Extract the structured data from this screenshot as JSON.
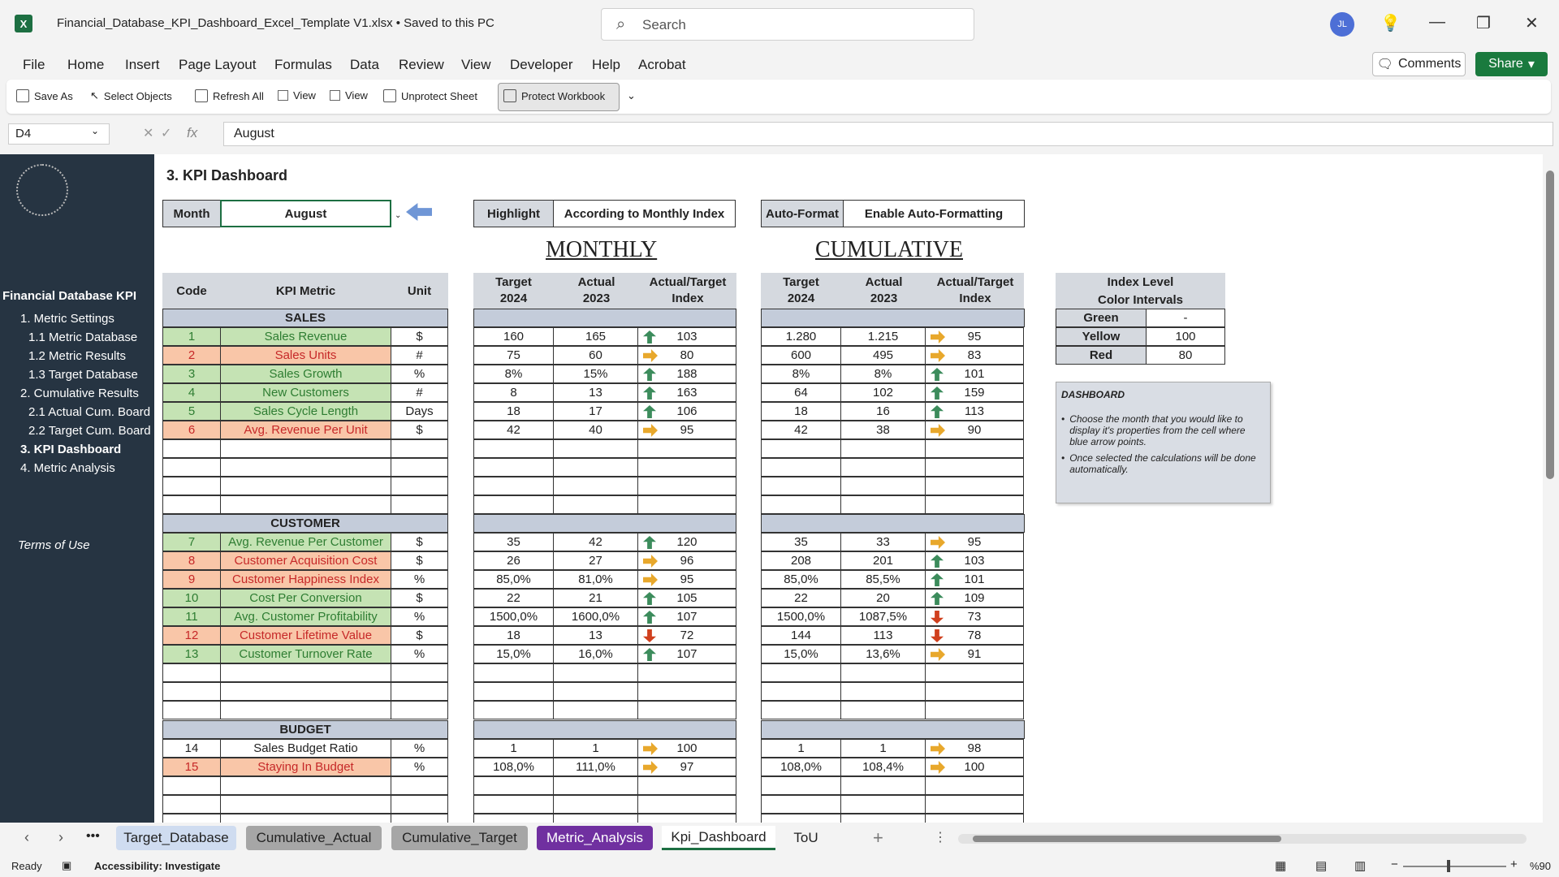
{
  "window": {
    "file_title": "Financial_Database_KPI_Dashboard_Excel_Template V1.xlsx • Saved to this PC",
    "search_placeholder": "Search",
    "avatar": "JL"
  },
  "menu": [
    "File",
    "Home",
    "Insert",
    "Page Layout",
    "Formulas",
    "Data",
    "Review",
    "View",
    "Developer",
    "Help",
    "Acrobat"
  ],
  "menu_right": {
    "comments": "Comments",
    "share": "Share"
  },
  "ribbon": {
    "save_as": "Save As",
    "select_objects": "Select Objects",
    "refresh_all": "Refresh All",
    "view1": "View",
    "view2": "View",
    "unprotect": "Unprotect Sheet",
    "protect": "Protect Workbook"
  },
  "formula_bar": {
    "name_box": "D4",
    "fx": "fx",
    "value": "August"
  },
  "sidebar": {
    "header": "Financial Database KPI",
    "items": [
      "1. Metric Settings",
      "1.1 Metric Database",
      "1.2 Metric Results",
      "1.3 Target Database",
      "2. Cumulative Results",
      "2.1 Actual Cum. Board",
      "2.2 Target Cum. Board",
      "3. KPI Dashboard",
      "4. Metric Analysis"
    ],
    "terms": "Terms of Use"
  },
  "dashboard": {
    "title": "3. KPI Dashboard",
    "month_label": "Month",
    "month_value": "August",
    "highlight_label": "Highlight",
    "highlight_value": "According to Monthly Index",
    "autoformat_label": "Auto-Format",
    "autoformat_value": "Enable Auto-Formatting",
    "monthly": "MONTHLY",
    "cumulative": "CUMULATIVE",
    "col_code": "Code",
    "col_metric": "KPI Metric",
    "col_unit": "Unit",
    "col_target": "Target",
    "col_target_year": "2024",
    "col_actual": "Actual",
    "col_actual_year": "2023",
    "col_index": "Actual/Target",
    "col_index2": "Index",
    "legend_title1": "Index Level",
    "legend_title2": "Color Intervals",
    "legend": [
      {
        "name": "Green",
        "value": "-"
      },
      {
        "name": "Yellow",
        "value": "100"
      },
      {
        "name": "Red",
        "value": "80"
      }
    ],
    "note_title": "DASHBOARD",
    "note_items": [
      "Choose the month that you would like to display it's properties from the cell where blue arrow points.",
      "Once selected the calculations will be done automatically."
    ]
  },
  "sections": {
    "sales": "SALES",
    "customer": "CUSTOMER",
    "budget": "BUDGET"
  },
  "rows": [
    {
      "code": "1",
      "metric": "Sales Revenue",
      "unit": "$",
      "mt": "160",
      "ma": "165",
      "mi": "103",
      "mdir": "up",
      "ct": "1.280",
      "ca": "1.215",
      "ci": "95",
      "cdir": "right",
      "color": "g"
    },
    {
      "code": "2",
      "metric": "Sales Units",
      "unit": "#",
      "mt": "75",
      "ma": "60",
      "mi": "80",
      "mdir": "right",
      "ct": "600",
      "ca": "495",
      "ci": "83",
      "cdir": "right",
      "color": "r"
    },
    {
      "code": "3",
      "metric": "Sales Growth",
      "unit": "%",
      "mt": "8%",
      "ma": "15%",
      "mi": "188",
      "mdir": "up",
      "ct": "8%",
      "ca": "8%",
      "ci": "101",
      "cdir": "up",
      "color": "g"
    },
    {
      "code": "4",
      "metric": "New Customers",
      "unit": "#",
      "mt": "8",
      "ma": "13",
      "mi": "163",
      "mdir": "up",
      "ct": "64",
      "ca": "102",
      "ci": "159",
      "cdir": "up",
      "color": "g"
    },
    {
      "code": "5",
      "metric": "Sales Cycle Length",
      "unit": "Days",
      "mt": "18",
      "ma": "17",
      "mi": "106",
      "mdir": "up",
      "ct": "18",
      "ca": "16",
      "ci": "113",
      "cdir": "up",
      "color": "g"
    },
    {
      "code": "6",
      "metric": "Avg. Revenue Per Unit",
      "unit": "$",
      "mt": "42",
      "ma": "40",
      "mi": "95",
      "mdir": "right",
      "ct": "42",
      "ca": "38",
      "ci": "90",
      "cdir": "right",
      "color": "r"
    },
    {
      "code": "7",
      "metric": "Avg. Revenue Per Customer",
      "unit": "$",
      "mt": "35",
      "ma": "42",
      "mi": "120",
      "mdir": "up",
      "ct": "35",
      "ca": "33",
      "ci": "95",
      "cdir": "right",
      "color": "g"
    },
    {
      "code": "8",
      "metric": "Customer Acquisition Cost",
      "unit": "$",
      "mt": "26",
      "ma": "27",
      "mi": "96",
      "mdir": "right",
      "ct": "208",
      "ca": "201",
      "ci": "103",
      "cdir": "up",
      "color": "r"
    },
    {
      "code": "9",
      "metric": "Customer Happiness Index",
      "unit": "%",
      "mt": "85,0%",
      "ma": "81,0%",
      "mi": "95",
      "mdir": "right",
      "ct": "85,0%",
      "ca": "85,5%",
      "ci": "101",
      "cdir": "up",
      "color": "r"
    },
    {
      "code": "10",
      "metric": "Cost Per Conversion",
      "unit": "$",
      "mt": "22",
      "ma": "21",
      "mi": "105",
      "mdir": "up",
      "ct": "22",
      "ca": "20",
      "ci": "109",
      "cdir": "up",
      "color": "g"
    },
    {
      "code": "11",
      "metric": "Avg. Customer Profitability",
      "unit": "%",
      "mt": "1500,0%",
      "ma": "1600,0%",
      "mi": "107",
      "mdir": "up",
      "ct": "1500,0%",
      "ca": "1087,5%",
      "ci": "73",
      "cdir": "down",
      "color": "g"
    },
    {
      "code": "12",
      "metric": "Customer Lifetime Value",
      "unit": "$",
      "mt": "18",
      "ma": "13",
      "mi": "72",
      "mdir": "down",
      "ct": "144",
      "ca": "113",
      "ci": "78",
      "cdir": "down",
      "color": "r"
    },
    {
      "code": "13",
      "metric": "Customer Turnover Rate",
      "unit": "%",
      "mt": "15,0%",
      "ma": "16,0%",
      "mi": "107",
      "mdir": "up",
      "ct": "15,0%",
      "ca": "13,6%",
      "ci": "91",
      "cdir": "right",
      "color": "g"
    },
    {
      "code": "14",
      "metric": "Sales Budget Ratio",
      "unit": "%",
      "mt": "1",
      "ma": "1",
      "mi": "100",
      "mdir": "right",
      "ct": "1",
      "ca": "1",
      "ci": "98",
      "cdir": "right",
      "color": "n"
    },
    {
      "code": "15",
      "metric": "Staying In Budget",
      "unit": "%",
      "mt": "108,0%",
      "ma": "111,0%",
      "mi": "97",
      "mdir": "right",
      "ct": "108,0%",
      "ca": "108,4%",
      "ci": "100",
      "cdir": "right",
      "color": "r"
    }
  ],
  "sheet_tabs": [
    "Target_Database",
    "Cumulative_Actual",
    "Cumulative_Target",
    "Metric_Analysis",
    "Kpi_Dashboard",
    "ToU"
  ],
  "status": {
    "ready": "Ready",
    "accessibility": "Accessibility: Investigate",
    "zoom": "%90"
  }
}
